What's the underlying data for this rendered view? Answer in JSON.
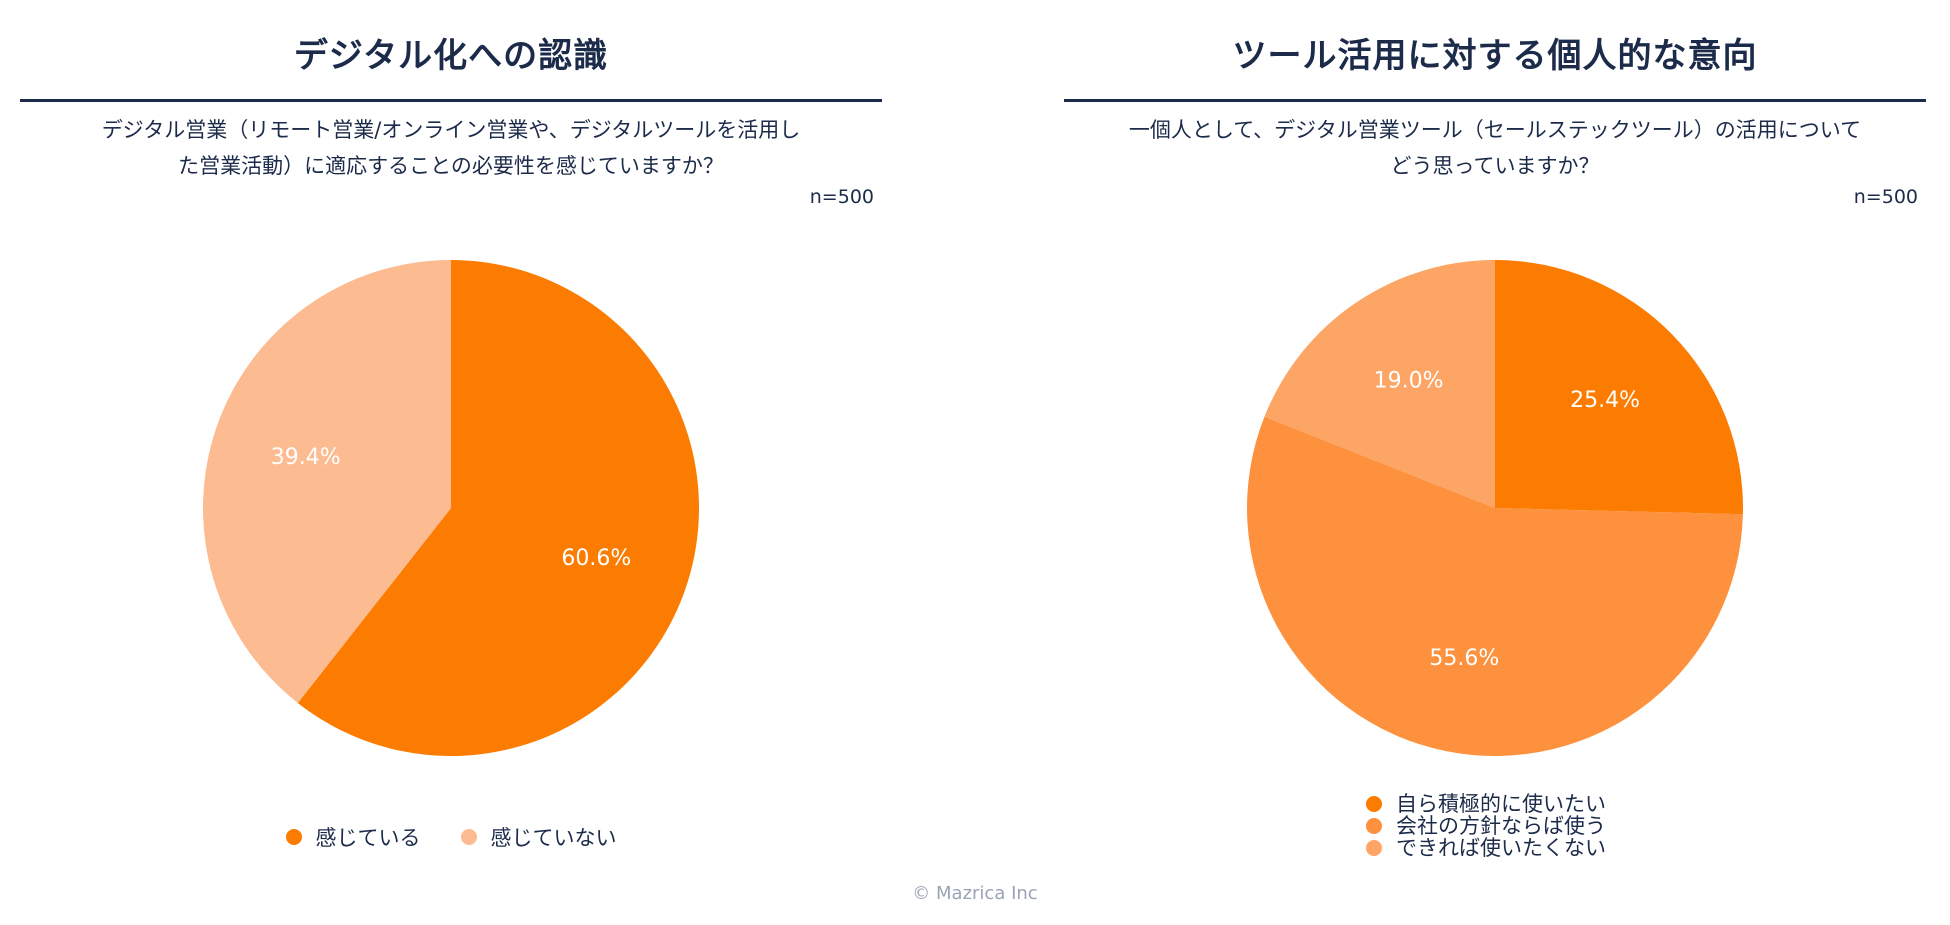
{
  "chart_data": [
    {
      "type": "pie",
      "title": "デジタル化への認識",
      "subtitle": "デジタル営業（リモート営業/オンライン営業や、デジタルツールを活用した営業活動）に適応することの必要性を感じていますか？",
      "subtitle_lines": [
        "デジタル営業（リモート営業/オンライン営業や、デジタルツールを活用し",
        "た営業活動）に適応することの必要性を感じていますか？"
      ],
      "note": "n=500",
      "categories": [
        "感じている",
        "感じていない"
      ],
      "values": [
        60.6,
        39.4
      ],
      "labels": [
        "60.6%",
        "39.4%"
      ],
      "colors": [
        "#fb7c00",
        "#fdbb91"
      ],
      "legend_position": "bottom"
    },
    {
      "type": "pie",
      "title": "ツール活用に対する個人的な意向",
      "subtitle": "一個人として、デジタル営業ツール（セールステックツール）の活用についてどう思っていますか？",
      "subtitle_lines": [
        "一個人として、デジタル営業ツール（セールステックツール）の活用について",
        "どう思っていますか？"
      ],
      "note": "n=500",
      "categories": [
        "自ら積極的に使いたい",
        "会社の方針ならば使う",
        "できれば使いたくない"
      ],
      "values": [
        25.4,
        55.6,
        19.0
      ],
      "labels": [
        "25.4%",
        "55.6%",
        "19.0%"
      ],
      "colors": [
        "#fb7c00",
        "#fd913d",
        "#fda565"
      ],
      "legend_position": "bottom"
    }
  ],
  "footer": {
    "copyright": "© Mazrica Inc"
  }
}
